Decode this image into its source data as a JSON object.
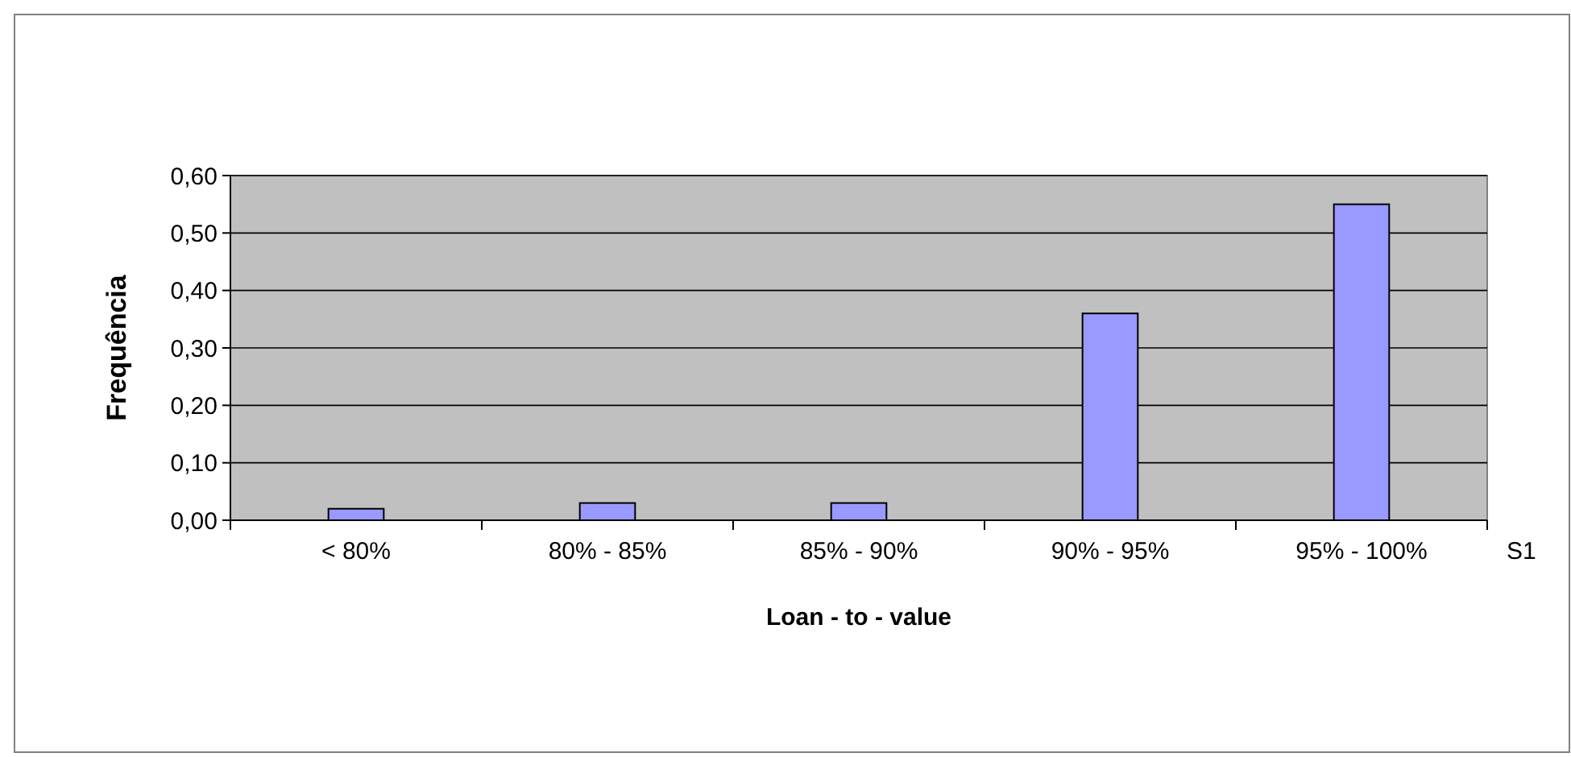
{
  "chart_data": {
    "type": "bar",
    "xlabel": "Loan - to - value",
    "ylabel": "Frequência",
    "categories": [
      "< 80%",
      "80% - 85%",
      "85% - 90%",
      "90% - 95%",
      "95% - 100%"
    ],
    "series": [
      {
        "name": "S1",
        "color": "#9999ff",
        "values": [
          0.02,
          0.03,
          0.03,
          0.36,
          0.55
        ]
      }
    ],
    "ylim": [
      0,
      0.6
    ],
    "yticks": [
      {
        "value": 0,
        "label": "0,00"
      },
      {
        "value": 0.1,
        "label": "0,10"
      },
      {
        "value": 0.2,
        "label": "0,20"
      },
      {
        "value": 0.3,
        "label": "0,30"
      },
      {
        "value": 0.4,
        "label": "0,40"
      },
      {
        "value": 0.5,
        "label": "0,50"
      },
      {
        "value": 0.6,
        "label": "0,60"
      }
    ],
    "grid": "y",
    "legend": false
  }
}
